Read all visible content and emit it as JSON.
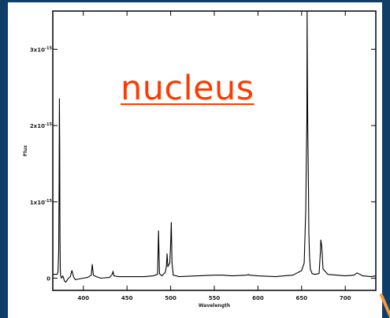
{
  "slide": {
    "background": "#0e3d68",
    "heading": "nucleus",
    "heading_color": "#ff3a00",
    "arrow_color": "#f59a3b"
  },
  "chart_data": {
    "type": "line",
    "title": "",
    "xlabel": "Wavelength",
    "ylabel": "Flux",
    "xlim": [
      3650,
      7350
    ],
    "ylim": [
      -1.6e-16,
      3.5e-15
    ],
    "xticks": [
      4000,
      4500,
      5000,
      5500,
      6000,
      6500,
      7000
    ],
    "xtick_labels": [
      "400",
      "450",
      "500",
      "550",
      "600",
      "650",
      "700"
    ],
    "yticks": [
      0,
      1e-15,
      2e-15,
      3e-15
    ],
    "ytick_labels": [
      "0",
      "1x10",
      "2x10",
      "3x10"
    ],
    "ytick_exponent": "-15",
    "series": [
      {
        "color": "#000000",
        "x": [
          3650,
          3700,
          3710,
          3718,
          3722,
          3726,
          3729,
          3732,
          3736,
          3740,
          3750,
          3765,
          3785,
          3800,
          3830,
          3850,
          3869,
          3890,
          3910,
          3950,
          4000,
          4050,
          4090,
          4102,
          4115,
          4150,
          4200,
          4300,
          4330,
          4340,
          4350,
          4400,
          4500,
          4600,
          4700,
          4800,
          4850,
          4861,
          4872,
          4900,
          4940,
          4950,
          4959,
          4968,
          4990,
          5000,
          5007,
          5015,
          5030,
          5100,
          5300,
          5500,
          5600,
          5700,
          5876,
          5890,
          5900,
          6000,
          6200,
          6300,
          6400,
          6500,
          6530,
          6548,
          6555,
          6560,
          6563,
          6566,
          6570,
          6578,
          6583,
          6590,
          6600,
          6620,
          6650,
          6700,
          6716,
          6720,
          6731,
          6745,
          6800,
          6900,
          7000,
          7100,
          7135,
          7200,
          7300,
          7350
        ],
        "y": [
          5e-17,
          5e-17,
          8e-17,
          3.5e-16,
          1.2e-15,
          2.35e-15,
          1.7e-15,
          6e-16,
          1.2e-16,
          3e-17,
          0.0,
          3e-17,
          -4e-17,
          -5e-17,
          0.0,
          2e-17,
          1e-16,
          1e-17,
          -2e-17,
          -1e-17,
          0.0,
          1e-17,
          4e-17,
          1.8e-16,
          4e-17,
          2e-17,
          0.0,
          1e-17,
          5e-17,
          9e-17,
          3e-17,
          2e-17,
          2e-17,
          2e-17,
          2e-17,
          3e-17,
          5e-17,
          6.2e-16,
          6e-17,
          3e-17,
          8e-17,
          1.5e-16,
          3.2e-16,
          1.5e-16,
          2e-16,
          4.5e-16,
          7.3e-16,
          2e-16,
          4e-17,
          2e-17,
          3e-17,
          4e-17,
          4e-17,
          3e-17,
          4e-17,
          5e-17,
          4e-17,
          3e-17,
          2e-17,
          3e-17,
          4e-17,
          1e-16,
          2e-16,
          9e-16,
          1.6e-15,
          2.1e-15,
          3.5e-15,
          2.8e-15,
          2e-15,
          1.2e-15,
          6e-16,
          3e-16,
          1.2e-16,
          6e-17,
          5e-17,
          6e-17,
          3.5e-16,
          5e-16,
          4.2e-16,
          1.2e-16,
          5e-17,
          4e-17,
          3e-17,
          4e-17,
          7e-17,
          3e-17,
          2e-17,
          3e-17
        ]
      }
    ],
    "grid": false,
    "legend": "none"
  }
}
